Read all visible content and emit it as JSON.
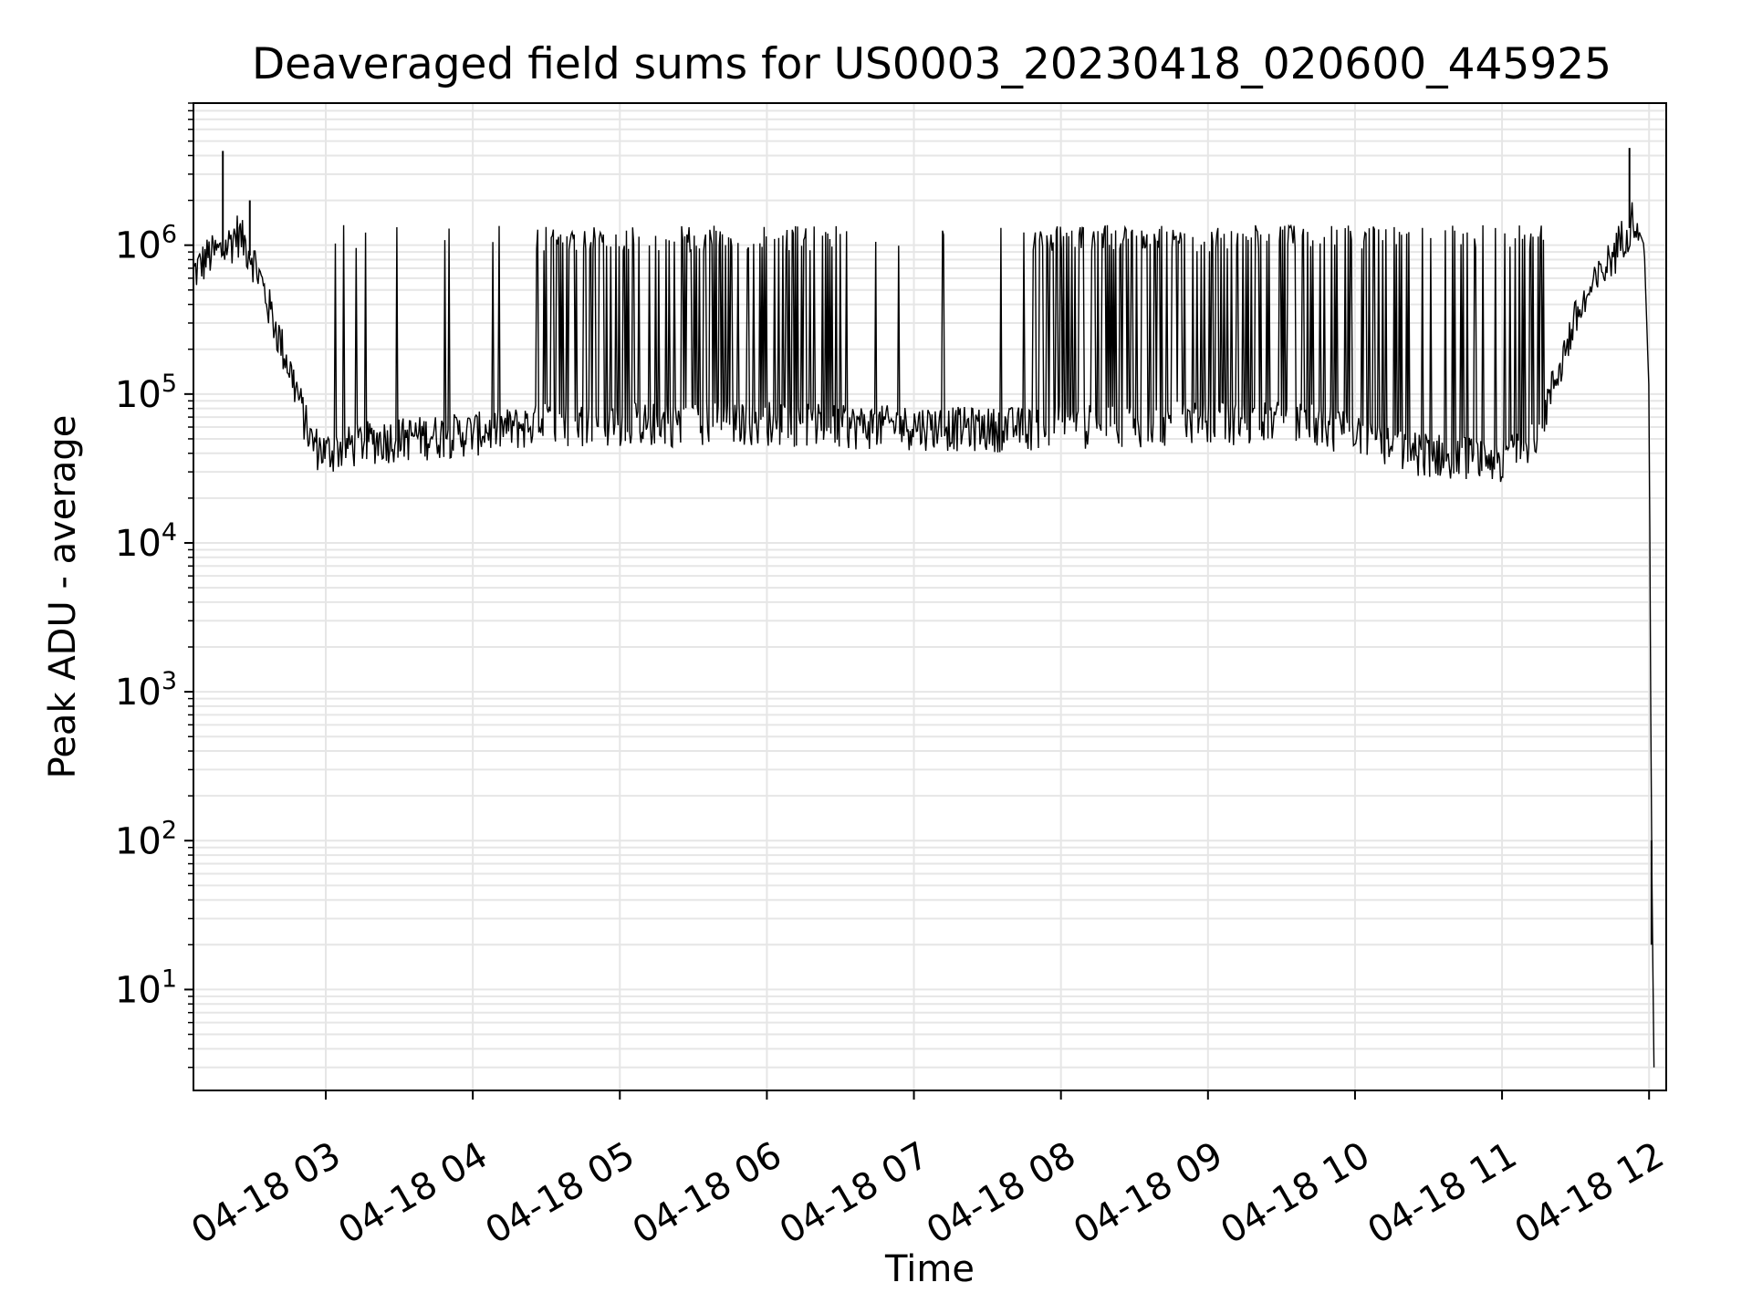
{
  "chart_data": {
    "type": "line",
    "title": "Deaveraged field sums for US0003_20230418_020600_445925",
    "xlabel": "Time",
    "ylabel": "Peak ADU - average",
    "yscale": "log",
    "ylim": [
      2.1,
      9000000
    ],
    "xlim": [
      "2023-04-18 02:06",
      "2023-04-18 12:07"
    ],
    "grid": true,
    "line_color": "#000000",
    "grid_color": "#e6e6e6",
    "x_ticks": [
      {
        "value": "2023-04-18 03:00",
        "label": "04-18 03"
      },
      {
        "value": "2023-04-18 04:00",
        "label": "04-18 04"
      },
      {
        "value": "2023-04-18 05:00",
        "label": "04-18 05"
      },
      {
        "value": "2023-04-18 06:00",
        "label": "04-18 06"
      },
      {
        "value": "2023-04-18 07:00",
        "label": "04-18 07"
      },
      {
        "value": "2023-04-18 08:00",
        "label": "04-18 08"
      },
      {
        "value": "2023-04-18 09:00",
        "label": "04-18 09"
      },
      {
        "value": "2023-04-18 10:00",
        "label": "04-18 10"
      },
      {
        "value": "2023-04-18 11:00",
        "label": "04-18 11"
      },
      {
        "value": "2023-04-18 12:00",
        "label": "04-18 12"
      }
    ],
    "y_ticks": [
      {
        "value": 10,
        "base": "10",
        "exp": "1"
      },
      {
        "value": 100,
        "base": "10",
        "exp": "2"
      },
      {
        "value": 1000,
        "base": "10",
        "exp": "3"
      },
      {
        "value": 10000,
        "base": "10",
        "exp": "4"
      },
      {
        "value": 100000,
        "base": "10",
        "exp": "5"
      },
      {
        "value": 1000000,
        "base": "10",
        "exp": "6"
      }
    ],
    "series": [
      {
        "baseline": [
          [
            "2023-04-18 02:06",
            600000
          ],
          [
            "2023-04-18 02:12",
            800000
          ],
          [
            "2023-04-18 02:18",
            850000
          ],
          [
            "2023-04-18 02:24",
            1150000
          ],
          [
            "2023-04-18 02:30",
            800000
          ],
          [
            "2023-04-18 02:36",
            400000
          ],
          [
            "2023-04-18 02:42",
            200000
          ],
          [
            "2023-04-18 02:48",
            100000
          ],
          [
            "2023-04-18 02:54",
            45000
          ],
          [
            "2023-04-18 03:00",
            38000
          ],
          [
            "2023-04-18 03:15",
            45000
          ],
          [
            "2023-04-18 03:30",
            48000
          ],
          [
            "2023-04-18 04:00",
            52000
          ],
          [
            "2023-04-18 04:30",
            60000
          ],
          [
            "2023-04-18 05:00",
            60000
          ],
          [
            "2023-04-18 06:00",
            62000
          ],
          [
            "2023-04-18 06:30",
            58000
          ],
          [
            "2023-04-18 07:00",
            58000
          ],
          [
            "2023-04-18 07:30",
            56000
          ],
          [
            "2023-04-18 08:00",
            58000
          ],
          [
            "2023-04-18 08:30",
            60000
          ],
          [
            "2023-04-18 09:00",
            62000
          ],
          [
            "2023-04-18 09:30",
            62000
          ],
          [
            "2023-04-18 10:00",
            55000
          ],
          [
            "2023-04-18 10:15",
            40000
          ],
          [
            "2023-04-18 10:30",
            38000
          ],
          [
            "2023-04-18 10:45",
            36000
          ],
          [
            "2023-04-18 11:00",
            34000
          ],
          [
            "2023-04-18 11:15",
            55000
          ],
          [
            "2023-04-18 11:30",
            300000
          ],
          [
            "2023-04-18 11:45",
            800000
          ],
          [
            "2023-04-18 11:54",
            1500000
          ],
          [
            "2023-04-18 11:58",
            1000000
          ],
          [
            "2023-04-18 12:00",
            100000
          ],
          [
            "2023-04-18 12:01",
            100
          ],
          [
            "2023-04-18 12:02",
            3
          ]
        ],
        "spikes": [
          [
            "2023-04-18 02:18",
            4300000
          ],
          [
            "2023-04-18 02:29",
            2000000
          ],
          [
            "2023-04-18 11:52",
            4500000
          ],
          [
            "2023-04-18 12:01",
            20
          ]
        ],
        "peak_level": 1300000,
        "noise_upper": 1.45,
        "noise_lower": 0.72
      }
    ]
  }
}
